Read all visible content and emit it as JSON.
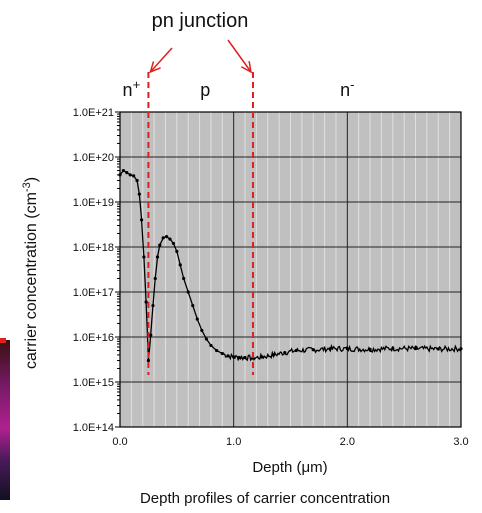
{
  "chart_data": {
    "type": "line",
    "title": "",
    "caption": "Depth profiles of carrier concentration",
    "xlabel_prefix": "Depth (",
    "xlabel_unit": "μm",
    "xlabel_suffix": ")",
    "ylabel_prefix": "carrier concentration (cm",
    "ylabel_exp": "-3",
    "ylabel_suffix": ")",
    "xlim": [
      0.0,
      3.0
    ],
    "ylim": [
      100000000000000.0,
      1e+21
    ],
    "yscale": "log",
    "grid": true,
    "x_ticks": [
      {
        "value": 0.0,
        "label": "0.0"
      },
      {
        "value": 1.0,
        "label": "1.0"
      },
      {
        "value": 2.0,
        "label": "2.0"
      },
      {
        "value": 3.0,
        "label": "3.0"
      }
    ],
    "y_ticks": [
      {
        "value": 1e+21,
        "label": "1.0E+21"
      },
      {
        "value": 1e+20,
        "label": "1.0E+20"
      },
      {
        "value": 1e+19,
        "label": "1.0E+19"
      },
      {
        "value": 1e+18,
        "label": "1.0E+18"
      },
      {
        "value": 1e+17,
        "label": "1.0E+17"
      },
      {
        "value": 1e+16,
        "label": "1.0E+16"
      },
      {
        "value": 1000000000000000.0,
        "label": "1.0E+15"
      },
      {
        "value": 100000000000000.0,
        "label": "1.0E+14"
      }
    ],
    "annotations": {
      "junction_label": "pn junction",
      "regions": [
        {
          "base": "n",
          "sup": "+",
          "x": 0.1
        },
        {
          "base": "p",
          "sup": "",
          "x": 0.75
        },
        {
          "base": "n",
          "sup": "-",
          "x": 2.0
        }
      ],
      "junction_depths": [
        0.25,
        1.17
      ]
    },
    "series": [
      {
        "color": "#000000",
        "points": [
          [
            0.0,
            4e+19
          ],
          [
            0.03,
            5e+19
          ],
          [
            0.06,
            4.5e+19
          ],
          [
            0.09,
            4e+19
          ],
          [
            0.12,
            3.8e+19
          ],
          [
            0.15,
            3e+19
          ],
          [
            0.17,
            1.5e+19
          ],
          [
            0.19,
            4e+18
          ],
          [
            0.21,
            6e+17
          ],
          [
            0.23,
            6e+16
          ],
          [
            0.25,
            3000000000000000.0
          ],
          [
            0.27,
            1.1e+16
          ],
          [
            0.29,
            5e+16
          ],
          [
            0.31,
            2e+17
          ],
          [
            0.33,
            6e+17
          ],
          [
            0.35,
            1.1e+18
          ],
          [
            0.38,
            1.6e+18
          ],
          [
            0.41,
            1.7e+18
          ],
          [
            0.44,
            1.5e+18
          ],
          [
            0.47,
            1.2e+18
          ],
          [
            0.5,
            8e+17
          ],
          [
            0.53,
            4e+17
          ],
          [
            0.56,
            2e+17
          ],
          [
            0.6,
            1e+17
          ],
          [
            0.64,
            5e+16
          ],
          [
            0.68,
            2.5e+16
          ],
          [
            0.72,
            1.4e+16
          ],
          [
            0.76,
            9000000000000000.0
          ],
          [
            0.8,
            6500000000000000.0
          ],
          [
            0.85,
            5000000000000000.0
          ],
          [
            0.9,
            4300000000000000.0
          ],
          [
            0.95,
            3800000000000000.0
          ],
          [
            1.0,
            3600000000000000.0
          ],
          [
            1.05,
            3500000000000000.0
          ],
          [
            1.1,
            3500000000000000.0
          ],
          [
            1.17,
            3400000000000000.0
          ],
          [
            1.25,
            3600000000000000.0
          ],
          [
            1.35,
            4000000000000000.0
          ],
          [
            1.45,
            4500000000000000.0
          ],
          [
            1.55,
            5000000000000000.0
          ],
          [
            1.7,
            5200000000000000.0
          ],
          [
            1.85,
            5500000000000000.0
          ],
          [
            2.0,
            5500000000000000.0
          ],
          [
            2.2,
            5300000000000000.0
          ],
          [
            2.4,
            5600000000000000.0
          ],
          [
            2.6,
            5500000000000000.0
          ],
          [
            2.8,
            5400000000000000.0
          ],
          [
            3.0,
            5500000000000000.0
          ]
        ]
      }
    ]
  },
  "colors": {
    "plot_bg": "#c0c0c0",
    "minor_grid": "#e0e0e0",
    "major_grid": "#222222",
    "annotation": "#e02020",
    "curve": "#000000"
  }
}
